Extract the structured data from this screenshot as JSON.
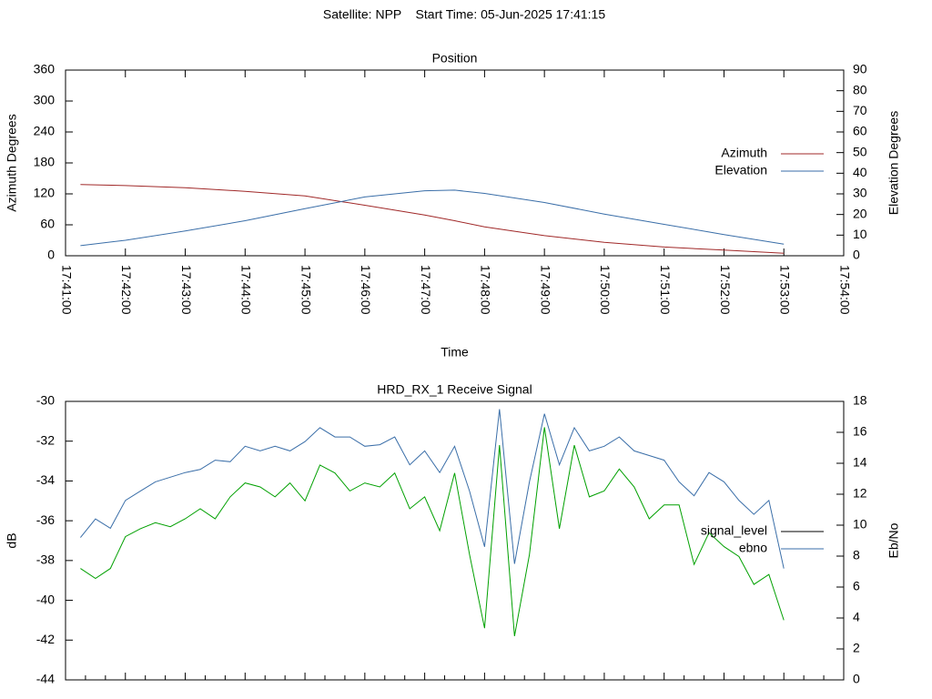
{
  "title": "Satellite: NPP    Start Time: 05-Jun-2025 17:41:15",
  "chart_data": [
    {
      "type": "line",
      "title": "Position",
      "xlabel": "Time",
      "ylabel": "Azimuth Degrees",
      "y2label": "Elevation Degrees",
      "x": [
        "17:41:15",
        "17:42:00",
        "17:43:00",
        "17:44:00",
        "17:45:00",
        "17:46:00",
        "17:47:00",
        "17:47:30",
        "17:48:00",
        "17:49:00",
        "17:50:00",
        "17:51:00",
        "17:52:00",
        "17:53:00"
      ],
      "series": [
        {
          "name": "Azimuth",
          "color": "#a02828",
          "values": [
            138,
            136,
            132,
            125,
            116,
            98,
            79,
            68,
            56,
            39,
            26,
            17,
            11,
            5
          ]
        },
        {
          "name": "Elevation",
          "color": "#3a6ea8",
          "axis": "y2",
          "values": [
            4.9,
            7.5,
            12,
            17,
            22.8,
            28.5,
            31.5,
            31.8,
            30.2,
            25.8,
            20.2,
            15.2,
            10.3,
            5.6
          ]
        }
      ],
      "xlim": [
        "17:41:00",
        "17:54:00"
      ],
      "xticks": [
        "17:41:00",
        "17:42:00",
        "17:43:00",
        "17:44:00",
        "17:45:00",
        "17:46:00",
        "17:47:00",
        "17:48:00",
        "17:49:00",
        "17:50:00",
        "17:51:00",
        "17:52:00",
        "17:53:00",
        "17:54:00"
      ],
      "ylim": [
        0,
        360
      ],
      "yticks": [
        0,
        60,
        120,
        180,
        240,
        300,
        360
      ],
      "y2lim": [
        0,
        90
      ],
      "y2ticks": [
        0,
        10,
        20,
        30,
        40,
        50,
        60,
        70,
        80,
        90
      ],
      "legend": "right"
    },
    {
      "type": "line",
      "title": "HRD_RX_1 Receive Signal",
      "ylabel": "dB",
      "y2label": "Eb/No",
      "x": [
        "17:41:15",
        "17:41:30",
        "17:41:45",
        "17:42:00",
        "17:42:15",
        "17:42:30",
        "17:42:45",
        "17:43:00",
        "17:43:15",
        "17:43:30",
        "17:43:45",
        "17:44:00",
        "17:44:15",
        "17:44:30",
        "17:44:45",
        "17:45:00",
        "17:45:15",
        "17:45:30",
        "17:45:45",
        "17:46:00",
        "17:46:15",
        "17:46:30",
        "17:46:45",
        "17:47:00",
        "17:47:15",
        "17:47:30",
        "17:47:45",
        "17:48:00",
        "17:48:15",
        "17:48:30",
        "17:48:45",
        "17:49:00",
        "17:49:15",
        "17:49:30",
        "17:49:45",
        "17:50:00",
        "17:50:15",
        "17:50:30",
        "17:50:45",
        "17:51:00",
        "17:51:15",
        "17:51:30",
        "17:51:45",
        "17:52:00",
        "17:52:15",
        "17:52:30",
        "17:52:45",
        "17:53:00"
      ],
      "series": [
        {
          "name": "signal_level",
          "color": "#00a000",
          "legend_color": "#000000",
          "values": [
            -38.4,
            -38.9,
            -38.4,
            -36.8,
            -36.4,
            -36.1,
            -36.3,
            -35.9,
            -35.4,
            -35.9,
            -34.8,
            -34.1,
            -34.3,
            -34.8,
            -34.1,
            -35.0,
            -33.2,
            -33.6,
            -34.5,
            -34.1,
            -34.3,
            -33.6,
            -35.4,
            -34.8,
            -36.5,
            -33.6,
            -37.7,
            -41.4,
            -32.2,
            -41.8,
            -37.7,
            -31.3,
            -36.4,
            -32.2,
            -34.8,
            -34.5,
            -33.4,
            -34.3,
            -35.9,
            -35.2,
            -35.2,
            -38.2,
            -36.6,
            -37.3,
            -37.8,
            -39.2,
            -38.7,
            -41.0
          ]
        },
        {
          "name": "ebno",
          "color": "#3a6ea8",
          "legend_color": "#3a6ea8",
          "axis": "y2",
          "values": [
            9.2,
            10.4,
            9.8,
            11.6,
            12.2,
            12.8,
            13.1,
            13.4,
            13.6,
            14.2,
            14.1,
            15.1,
            14.8,
            15.1,
            14.8,
            15.4,
            16.3,
            15.7,
            15.7,
            15.1,
            15.2,
            15.7,
            13.9,
            14.8,
            13.4,
            15.1,
            12.2,
            8.6,
            17.5,
            7.5,
            12.8,
            17.2,
            13.9,
            16.3,
            14.8,
            15.1,
            15.7,
            14.8,
            14.5,
            14.2,
            12.8,
            11.9,
            13.4,
            12.8,
            11.6,
            10.7,
            11.6,
            7.2
          ]
        }
      ],
      "xlim": [
        "17:41:00",
        "17:54:00"
      ],
      "xticks": [
        "17:41:00",
        "17:42:00",
        "17:43:00",
        "17:44:00",
        "17:45:00",
        "17:46:00",
        "17:47:00",
        "17:48:00",
        "17:49:00",
        "17:50:00",
        "17:51:00",
        "17:52:00",
        "17:53:00",
        "17:54:00"
      ],
      "xtick_labels": false,
      "minor_xticks": 2,
      "ylim": [
        -44,
        -30
      ],
      "yticks": [
        -44,
        -42,
        -40,
        -38,
        -36,
        -34,
        -32,
        -30
      ],
      "y2lim": [
        0,
        18
      ],
      "y2ticks": [
        0,
        2,
        4,
        6,
        8,
        10,
        12,
        14,
        16,
        18
      ],
      "legend": "right"
    }
  ]
}
